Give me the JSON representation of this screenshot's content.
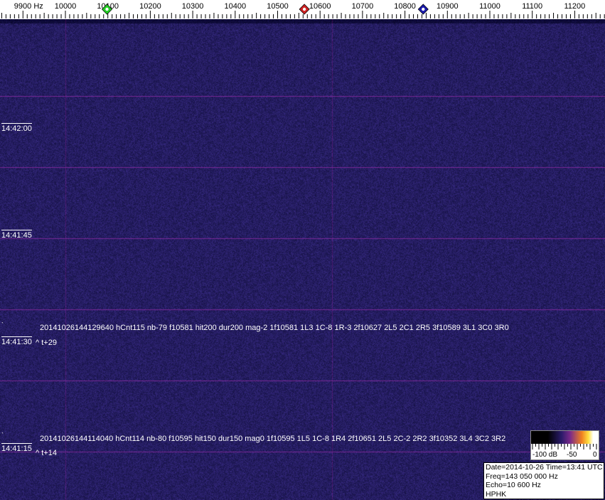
{
  "axis": {
    "unit_label": "9900 Hz",
    "ticks": [
      9900,
      10000,
      10100,
      10200,
      10300,
      10400,
      10500,
      10600,
      10700,
      10800,
      10900,
      11000,
      11100,
      11200
    ],
    "tick_labels": [
      "9900 Hz",
      "10000",
      "10100",
      "10200",
      "10300",
      "10400",
      "10500",
      "10600",
      "10700",
      "10800",
      "10900",
      "11000",
      "11100",
      "11200"
    ],
    "markers": [
      {
        "name": "green-marker",
        "freq": 10098,
        "color": "#22cc22"
      },
      {
        "name": "red-marker",
        "freq": 10563,
        "color": "#cc2222"
      },
      {
        "name": "blue-marker",
        "freq": 10843,
        "color": "#1a1aaa"
      }
    ]
  },
  "time_labels": [
    "14:42:00",
    "14:41:45",
    "14:41:30",
    "14:41:15"
  ],
  "echoes": [
    {
      "text": "20141026144129640 hCnt115 nb-79 f10581 hit200 dur200 mag-2 1f10581 1L3 1C-8 1R-3 2f10627 2L5 2C1 2R5 3f10589 3L1 3C0 3R0",
      "rel": "^ t+29"
    },
    {
      "text": "20141026144114040 hCnt114 nb-80 f10595 hit150 dur150 mag0 1f10595 1L5 1C-8 1R4 2f10651 2L5 2C-2 2R2 3f10352 3L4 3C2 3R2",
      "rel": "^ t+14"
    }
  ],
  "colorbar": {
    "labels": [
      "-100 dB",
      "-50",
      "0"
    ]
  },
  "info": {
    "date_time": "Date=2014-10-26 Time=13:41 UTC",
    "freq": "Freq=143 050 000 Hz",
    "echo": "Echo=10 600 Hz",
    "station": "HPHK"
  },
  "colors": {
    "background": "#1e1a5c",
    "grid": "#8a3aa0"
  }
}
